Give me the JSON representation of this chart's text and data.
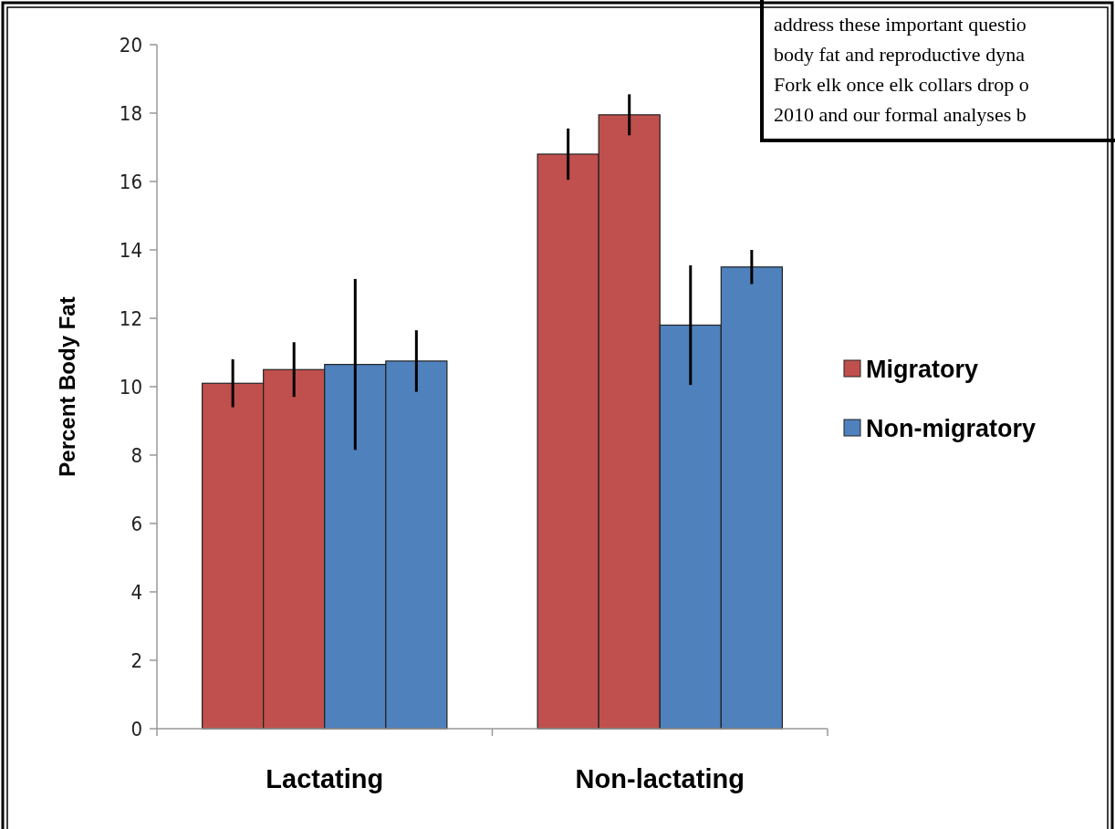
{
  "chart_data": {
    "type": "bar",
    "ylabel": "Percent Body Fat",
    "categories": [
      "Lactating",
      "Non-lactating"
    ],
    "series": [
      {
        "name": "Migratory",
        "color": "#c0504d",
        "values": [
          10.1,
          16.8
        ],
        "errors": [
          0.7,
          0.75
        ]
      },
      {
        "color": "#c0504d",
        "values": [
          10.5,
          17.95
        ],
        "errors": [
          0.8,
          0.6
        ]
      },
      {
        "name": "Non-migratory",
        "color": "#4f81bd",
        "values": [
          10.65,
          11.8
        ],
        "errors": [
          2.5,
          1.75
        ]
      },
      {
        "color": "#4f81bd",
        "values": [
          10.75,
          13.5
        ],
        "errors": [
          0.9,
          0.5
        ]
      }
    ],
    "ylim": [
      0,
      20
    ],
    "yticks": [
      0,
      2,
      4,
      6,
      8,
      10,
      12,
      14,
      16,
      18,
      20
    ],
    "grid": false,
    "legend": "right",
    "annotations": [
      "address these important questio",
      "body fat and reproductive dyna",
      "Fork elk once elk collars drop o",
      "2010 and our formal analyses b"
    ]
  }
}
